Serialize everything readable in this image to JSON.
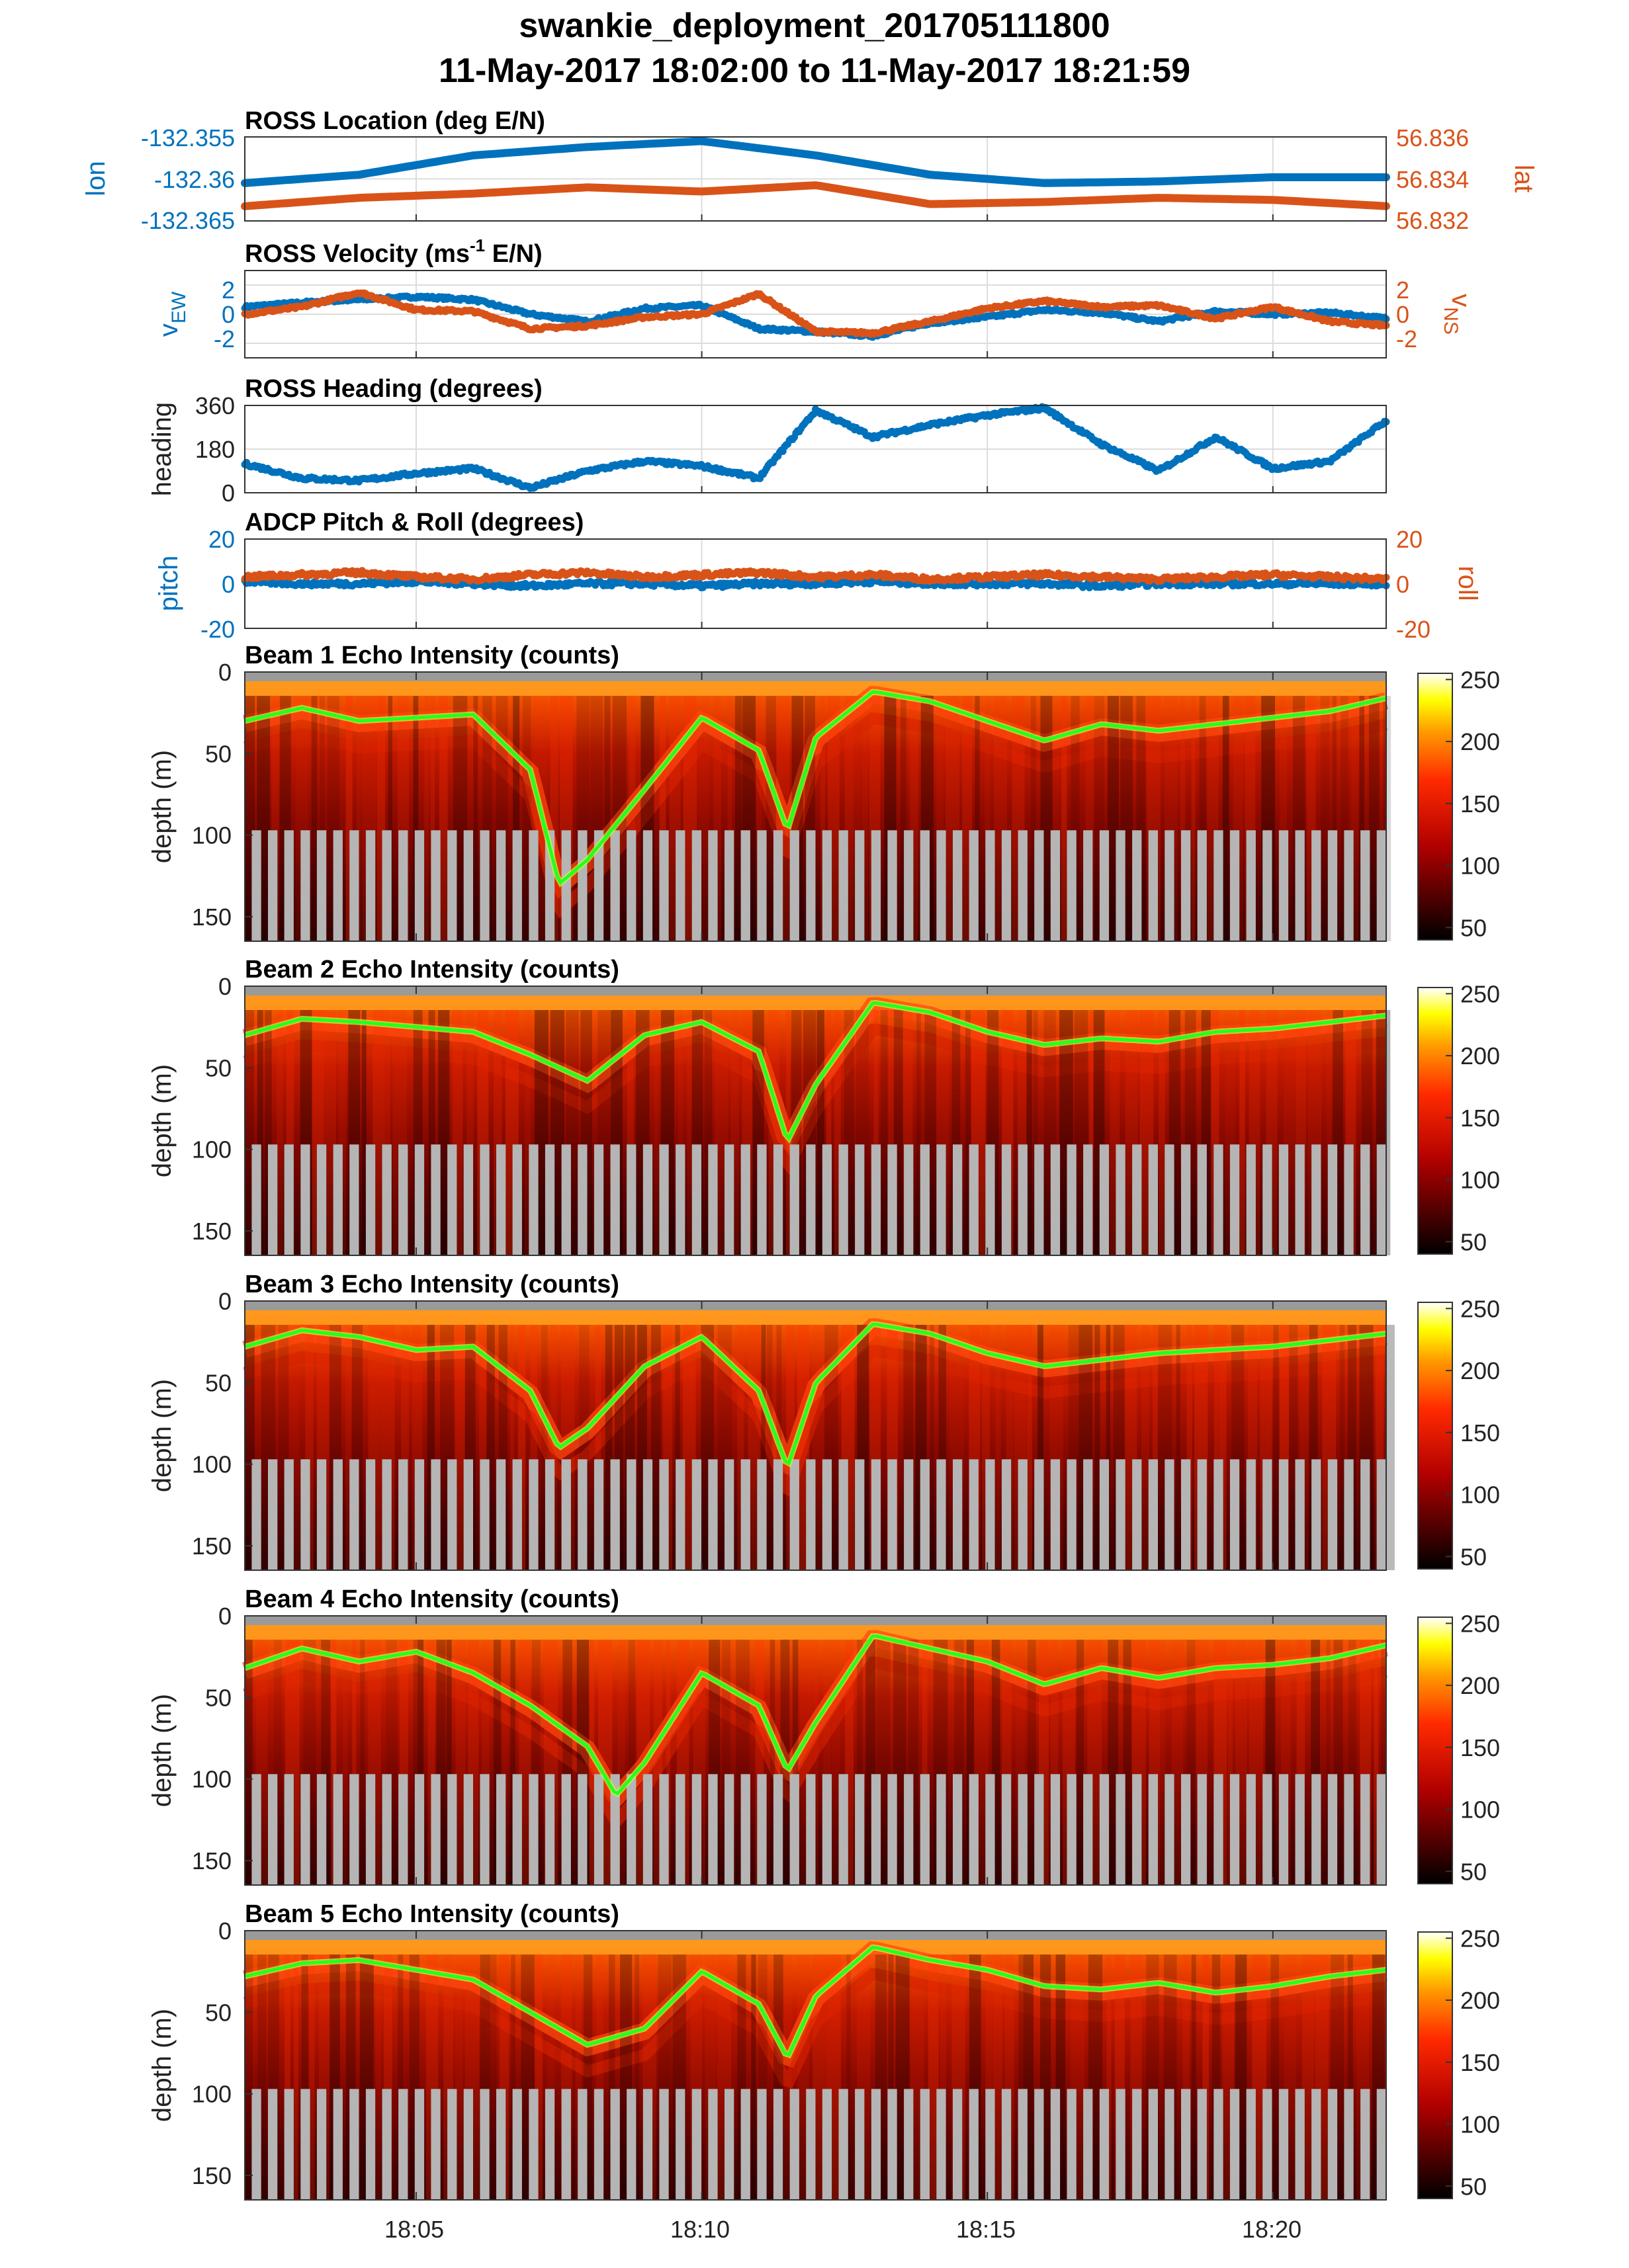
{
  "figure": {
    "title_line1": "swankie_deployment_201705111800",
    "title_line2": "11-May-2017 18:02:00 to 11-May-2017 18:21:59"
  },
  "colors": {
    "blue": "#0072BD",
    "orange": "#D95319",
    "bottom_track": "#22ff22",
    "bottom_track_edge": "#ccff33",
    "masked": "#b5b5b5"
  },
  "chart_data": [
    {
      "type": "line",
      "id": "location",
      "title": "ROSS Location (deg E/N)",
      "x_ticks": [
        "18:05",
        "18:10",
        "18:15",
        "18:20"
      ],
      "x": [
        "18:02",
        "18:04",
        "18:06",
        "18:08",
        "18:10",
        "18:12",
        "18:14",
        "18:16",
        "18:18",
        "18:20",
        "18:22"
      ],
      "xlim": [
        "18:02:00",
        "18:21:59"
      ],
      "y_left": {
        "label": "lon",
        "ylim": [
          -132.365,
          -132.355
        ],
        "ticks": [
          "-132.355",
          "-132.36",
          "-132.365"
        ]
      },
      "y_right": {
        "label": "lat",
        "ylim": [
          56.832,
          56.836
        ],
        "ticks": [
          "56.836",
          "56.834",
          "56.832"
        ]
      },
      "grid": true,
      "series": [
        {
          "axis": "left",
          "color": "#0072BD",
          "values": [
            -132.3605,
            -132.3595,
            -132.3572,
            -132.3562,
            -132.3555,
            -132.3572,
            -132.3595,
            -132.3605,
            -132.3603,
            -132.3598,
            -132.3598
          ]
        },
        {
          "axis": "right",
          "color": "#D95319",
          "values": [
            56.8327,
            56.8331,
            56.8333,
            56.8336,
            56.8334,
            56.8337,
            56.8328,
            56.8329,
            56.8331,
            56.833,
            56.8327
          ]
        }
      ]
    },
    {
      "type": "scatter",
      "id": "velocity",
      "title": "ROSS Velocity (ms",
      "title_sup": "-1",
      "title_end": " E/N)",
      "x": [
        "18:02",
        "18:03",
        "18:04",
        "18:05",
        "18:06",
        "18:07",
        "18:08",
        "18:09",
        "18:10",
        "18:11",
        "18:12",
        "18:13",
        "18:14",
        "18:15",
        "18:16",
        "18:17",
        "18:18",
        "18:19",
        "18:20",
        "18:21",
        "18:22"
      ],
      "xlim": [
        "18:02:00",
        "18:21:59"
      ],
      "y_left": {
        "label": "v",
        "label_sub": "EW",
        "ylim": [
          -3,
          3
        ],
        "ticks": [
          "2",
          "0",
          "-2"
        ]
      },
      "y_right": {
        "label": "v",
        "label_sub": "NS",
        "ylim": [
          -3,
          3
        ],
        "ticks": [
          "2",
          "0",
          "-2"
        ]
      },
      "grid": true,
      "series": [
        {
          "axis": "left",
          "color": "#0072BD",
          "values": [
            0.5,
            0.8,
            1.0,
            1.2,
            1.0,
            0.0,
            -0.5,
            0.4,
            0.6,
            -1.0,
            -1.2,
            -1.5,
            -0.6,
            -0.2,
            0.3,
            0.1,
            -0.5,
            0.2,
            0.0,
            0.1,
            -0.3
          ]
        },
        {
          "axis": "right",
          "color": "#D95319",
          "values": [
            0.0,
            0.5,
            1.5,
            0.3,
            0.2,
            -1.0,
            -0.8,
            -0.2,
            0.0,
            1.4,
            -1.2,
            -1.3,
            -0.5,
            0.4,
            0.9,
            0.5,
            0.6,
            -0.3,
            0.5,
            -0.5,
            -0.8
          ]
        }
      ]
    },
    {
      "type": "scatter",
      "id": "heading",
      "title": "ROSS Heading (degrees)",
      "x": [
        "18:02",
        "18:03",
        "18:04",
        "18:05",
        "18:06",
        "18:07",
        "18:08",
        "18:09",
        "18:10",
        "18:11",
        "18:12",
        "18:13",
        "18:14",
        "18:15",
        "18:16",
        "18:17",
        "18:18",
        "18:19",
        "18:20",
        "18:21",
        "18:22"
      ],
      "xlim": [
        "18:02:00",
        "18:21:59"
      ],
      "y_left": {
        "label": "heading",
        "ylim": [
          0,
          360
        ],
        "ticks": [
          "360",
          "180",
          "0"
        ]
      },
      "grid": true,
      "series": [
        {
          "axis": "left",
          "color": "#0072BD",
          "values": [
            120,
            60,
            50,
            80,
            100,
            20,
            90,
            130,
            110,
            60,
            340,
            230,
            280,
            320,
            350,
            200,
            90,
            230,
            100,
            130,
            300
          ]
        }
      ]
    },
    {
      "type": "scatter",
      "id": "pitchroll",
      "title": "ADCP Pitch & Roll (degrees)",
      "x": [
        "18:02",
        "18:03",
        "18:04",
        "18:05",
        "18:06",
        "18:07",
        "18:08",
        "18:09",
        "18:10",
        "18:11",
        "18:12",
        "18:13",
        "18:14",
        "18:15",
        "18:16",
        "18:17",
        "18:18",
        "18:19",
        "18:20",
        "18:21",
        "18:22"
      ],
      "xlim": [
        "18:02:00",
        "18:21:59"
      ],
      "y_left": {
        "label": "pitch",
        "ylim": [
          -20,
          20
        ],
        "ticks": [
          "20",
          "0",
          "-20"
        ]
      },
      "y_right": {
        "label": "roll",
        "ylim": [
          -20,
          20
        ],
        "ticks": [
          "20",
          "0",
          "-20"
        ]
      },
      "grid": true,
      "series": [
        {
          "axis": "left",
          "color": "#0072BD",
          "values": [
            1,
            0,
            0,
            1,
            0,
            -1,
            0,
            0,
            -1,
            0,
            0,
            1,
            0,
            0,
            0,
            -1,
            0,
            0,
            0,
            0,
            0
          ]
        },
        {
          "axis": "right",
          "color": "#D95319",
          "values": [
            3,
            4,
            5,
            3,
            2,
            4,
            5,
            3,
            4,
            5,
            3,
            4,
            2,
            3,
            4,
            3,
            2,
            3,
            4,
            3,
            2
          ]
        }
      ]
    },
    {
      "type": "heatmap",
      "id": "beam1",
      "title": "Beam 1 Echo Intensity (counts)",
      "ylabel": "depth (m)",
      "y_ticks": [
        "0",
        "50",
        "100",
        "150"
      ],
      "ylim": [
        0,
        165
      ],
      "colorbar_ticks": [
        "250",
        "200",
        "150",
        "100",
        "50"
      ],
      "clim": [
        40,
        255
      ],
      "mask_from_depth": 97,
      "bottom_track": {
        "x": [
          "18:02",
          "18:03",
          "18:04",
          "18:05",
          "18:06",
          "18:07",
          "18:07:30",
          "18:08",
          "18:09",
          "18:10",
          "18:11",
          "18:11:30",
          "18:12",
          "18:13",
          "18:14",
          "18:15",
          "18:16",
          "18:17",
          "18:18",
          "18:19",
          "18:20",
          "18:21",
          "18:21:59"
        ],
        "depth": [
          30,
          22,
          30,
          28,
          26,
          60,
          130,
          115,
          72,
          28,
          48,
          97,
          40,
          12,
          18,
          30,
          42,
          32,
          36,
          32,
          28,
          24,
          16
        ]
      }
    },
    {
      "type": "heatmap",
      "id": "beam2",
      "title": "Beam 2 Echo Intensity (counts)",
      "ylabel": "depth (m)",
      "y_ticks": [
        "0",
        "50",
        "100",
        "150"
      ],
      "ylim": [
        0,
        165
      ],
      "colorbar_ticks": [
        "250",
        "200",
        "150",
        "100",
        "50"
      ],
      "clim": [
        40,
        255
      ],
      "mask_from_depth": 97,
      "bottom_track": {
        "x": [
          "18:02",
          "18:03",
          "18:04",
          "18:05",
          "18:06",
          "18:07",
          "18:08",
          "18:09",
          "18:10",
          "18:11",
          "18:11:30",
          "18:12",
          "18:13",
          "18:14",
          "18:15",
          "18:16",
          "18:17",
          "18:18",
          "18:19",
          "18:20",
          "18:21",
          "18:21:59"
        ],
        "depth": [
          30,
          20,
          22,
          25,
          28,
          42,
          58,
          30,
          22,
          40,
          95,
          60,
          10,
          16,
          28,
          36,
          32,
          34,
          28,
          26,
          22,
          18
        ]
      }
    },
    {
      "type": "heatmap",
      "id": "beam3",
      "title": "Beam 3 Echo Intensity (counts)",
      "ylabel": "depth (m)",
      "y_ticks": [
        "0",
        "50",
        "100",
        "150"
      ],
      "ylim": [
        0,
        165
      ],
      "colorbar_ticks": [
        "250",
        "200",
        "150",
        "100",
        "50"
      ],
      "clim": [
        40,
        255
      ],
      "mask_from_depth": 97,
      "bottom_track": {
        "x": [
          "18:02",
          "18:03",
          "18:04",
          "18:05",
          "18:06",
          "18:07",
          "18:07:30",
          "18:08",
          "18:09",
          "18:10",
          "18:11",
          "18:11:30",
          "18:12",
          "18:13",
          "18:14",
          "18:15",
          "18:16",
          "18:17",
          "18:18",
          "18:19",
          "18:20",
          "18:21",
          "18:21:59"
        ],
        "depth": [
          28,
          18,
          22,
          30,
          28,
          55,
          90,
          78,
          40,
          22,
          55,
          102,
          50,
          14,
          20,
          32,
          40,
          36,
          32,
          30,
          28,
          24,
          20
        ]
      }
    },
    {
      "type": "heatmap",
      "id": "beam4",
      "title": "Beam 4 Echo Intensity (counts)",
      "ylabel": "depth (m)",
      "y_ticks": [
        "0",
        "50",
        "100",
        "150"
      ],
      "ylim": [
        0,
        165
      ],
      "colorbar_ticks": [
        "250",
        "200",
        "150",
        "100",
        "50"
      ],
      "clim": [
        40,
        255
      ],
      "mask_from_depth": 97,
      "bottom_track": {
        "x": [
          "18:02",
          "18:03",
          "18:04",
          "18:05",
          "18:06",
          "18:07",
          "18:08",
          "18:08:30",
          "18:09",
          "18:10",
          "18:11",
          "18:11:30",
          "18:12",
          "18:13",
          "18:14",
          "18:15",
          "18:16",
          "18:17",
          "18:18",
          "18:19",
          "18:20",
          "18:21",
          "18:21:59"
        ],
        "depth": [
          32,
          20,
          28,
          22,
          35,
          55,
          80,
          110,
          90,
          35,
          55,
          95,
          65,
          12,
          20,
          28,
          42,
          32,
          38,
          32,
          30,
          26,
          18
        ]
      }
    },
    {
      "type": "heatmap",
      "id": "beam5",
      "title": "Beam 5 Echo Intensity (counts)",
      "ylabel": "depth (m)",
      "y_ticks": [
        "0",
        "50",
        "100",
        "150"
      ],
      "ylim": [
        0,
        165
      ],
      "colorbar_ticks": [
        "250",
        "200",
        "150",
        "100",
        "50"
      ],
      "clim": [
        40,
        255
      ],
      "mask_from_depth": 97,
      "x_ticks": [
        "18:05",
        "18:10",
        "18:15",
        "18:20"
      ],
      "bottom_track": {
        "x": [
          "18:02",
          "18:03",
          "18:04",
          "18:05",
          "18:06",
          "18:07",
          "18:08",
          "18:09",
          "18:10",
          "18:11",
          "18:11:30",
          "18:12",
          "18:13",
          "18:14",
          "18:15",
          "18:16",
          "18:17",
          "18:18",
          "18:19",
          "18:20",
          "18:21",
          "18:21:59"
        ],
        "depth": [
          28,
          20,
          18,
          24,
          30,
          50,
          70,
          60,
          25,
          45,
          78,
          40,
          10,
          18,
          24,
          34,
          36,
          32,
          38,
          34,
          28,
          24
        ]
      }
    }
  ]
}
